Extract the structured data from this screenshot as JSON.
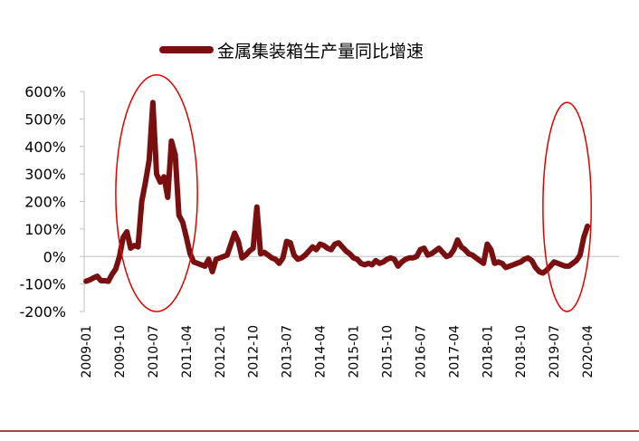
{
  "chart_data": {
    "type": "line",
    "series": [
      {
        "name": "金属集装箱生产量同比增速",
        "color": "#7a0f0f",
        "points": [
          [
            "2009-01",
            -90
          ],
          [
            "2009-02",
            -85
          ],
          [
            "2009-03",
            -78
          ],
          [
            "2009-04",
            -72
          ],
          [
            "2009-05",
            -88
          ],
          [
            "2009-06",
            -88
          ],
          [
            "2009-07",
            -90
          ],
          [
            "2009-08",
            -65
          ],
          [
            "2009-09",
            -45
          ],
          [
            "2009-10",
            0
          ],
          [
            "2009-11",
            70
          ],
          [
            "2009-12",
            90
          ],
          [
            "2010-01",
            30
          ],
          [
            "2010-02",
            40
          ],
          [
            "2010-03",
            35
          ],
          [
            "2010-04",
            200
          ],
          [
            "2010-05",
            270
          ],
          [
            "2010-06",
            350
          ],
          [
            "2010-07",
            560
          ],
          [
            "2010-08",
            300
          ],
          [
            "2010-09",
            270
          ],
          [
            "2010-10",
            290
          ],
          [
            "2010-11",
            215
          ],
          [
            "2010-12",
            420
          ],
          [
            "2011-01",
            370
          ],
          [
            "2011-02",
            150
          ],
          [
            "2011-03",
            125
          ],
          [
            "2011-04",
            70
          ],
          [
            "2011-05",
            10
          ],
          [
            "2011-06",
            -20
          ],
          [
            "2011-07",
            -25
          ],
          [
            "2011-08",
            -30
          ],
          [
            "2011-09",
            -35
          ],
          [
            "2011-10",
            -10
          ],
          [
            "2011-11",
            -55
          ],
          [
            "2011-12",
            -10
          ],
          [
            "2012-01",
            -5
          ],
          [
            "2012-02",
            0
          ],
          [
            "2012-03",
            5
          ],
          [
            "2012-04",
            45
          ],
          [
            "2012-05",
            85
          ],
          [
            "2012-06",
            55
          ],
          [
            "2012-07",
            -5
          ],
          [
            "2012-08",
            5
          ],
          [
            "2012-09",
            20
          ],
          [
            "2012-10",
            30
          ],
          [
            "2012-11",
            180
          ],
          [
            "2012-12",
            10
          ],
          [
            "2013-01",
            15
          ],
          [
            "2013-02",
            5
          ],
          [
            "2013-03",
            -5
          ],
          [
            "2013-04",
            -10
          ],
          [
            "2013-05",
            -25
          ],
          [
            "2013-06",
            -5
          ],
          [
            "2013-07",
            55
          ],
          [
            "2013-08",
            50
          ],
          [
            "2013-09",
            5
          ],
          [
            "2013-10",
            -10
          ],
          [
            "2013-11",
            -5
          ],
          [
            "2013-12",
            5
          ],
          [
            "2014-01",
            20
          ],
          [
            "2014-02",
            35
          ],
          [
            "2014-03",
            25
          ],
          [
            "2014-04",
            45
          ],
          [
            "2014-05",
            40
          ],
          [
            "2014-06",
            30
          ],
          [
            "2014-07",
            25
          ],
          [
            "2014-08",
            45
          ],
          [
            "2014-09",
            50
          ],
          [
            "2014-10",
            35
          ],
          [
            "2014-11",
            20
          ],
          [
            "2014-12",
            10
          ],
          [
            "2015-01",
            -5
          ],
          [
            "2015-02",
            -10
          ],
          [
            "2015-03",
            -25
          ],
          [
            "2015-04",
            -30
          ],
          [
            "2015-05",
            -25
          ],
          [
            "2015-06",
            -30
          ],
          [
            "2015-07",
            -15
          ],
          [
            "2015-08",
            -25
          ],
          [
            "2015-09",
            -20
          ],
          [
            "2015-10",
            -10
          ],
          [
            "2015-11",
            -5
          ],
          [
            "2015-12",
            -10
          ],
          [
            "2016-01",
            -35
          ],
          [
            "2016-02",
            -20
          ],
          [
            "2016-03",
            -10
          ],
          [
            "2016-04",
            -5
          ],
          [
            "2016-05",
            -5
          ],
          [
            "2016-06",
            0
          ],
          [
            "2016-07",
            25
          ],
          [
            "2016-08",
            30
          ],
          [
            "2016-09",
            5
          ],
          [
            "2016-10",
            10
          ],
          [
            "2016-11",
            20
          ],
          [
            "2016-12",
            30
          ],
          [
            "2017-01",
            15
          ],
          [
            "2017-02",
            0
          ],
          [
            "2017-03",
            5
          ],
          [
            "2017-04",
            25
          ],
          [
            "2017-05",
            60
          ],
          [
            "2017-06",
            35
          ],
          [
            "2017-07",
            25
          ],
          [
            "2017-08",
            10
          ],
          [
            "2017-09",
            5
          ],
          [
            "2017-10",
            -5
          ],
          [
            "2017-11",
            -15
          ],
          [
            "2017-12",
            -25
          ],
          [
            "2018-01",
            45
          ],
          [
            "2018-02",
            25
          ],
          [
            "2018-03",
            -25
          ],
          [
            "2018-04",
            -20
          ],
          [
            "2018-05",
            -25
          ],
          [
            "2018-06",
            -40
          ],
          [
            "2018-07",
            -35
          ],
          [
            "2018-08",
            -30
          ],
          [
            "2018-09",
            -25
          ],
          [
            "2018-10",
            -20
          ],
          [
            "2018-11",
            -10
          ],
          [
            "2018-12",
            -5
          ],
          [
            "2019-01",
            -15
          ],
          [
            "2019-02",
            -40
          ],
          [
            "2019-03",
            -55
          ],
          [
            "2019-04",
            -60
          ],
          [
            "2019-05",
            -50
          ],
          [
            "2019-06",
            -35
          ],
          [
            "2019-07",
            -20
          ],
          [
            "2019-08",
            -25
          ],
          [
            "2019-09",
            -30
          ],
          [
            "2019-10",
            -35
          ],
          [
            "2019-11",
            -35
          ],
          [
            "2019-12",
            -25
          ],
          [
            "2020-01",
            -15
          ],
          [
            "2020-02",
            5
          ],
          [
            "2020-03",
            70
          ],
          [
            "2020-04",
            110
          ]
        ]
      }
    ],
    "x_tick_labels": [
      "2009-01",
      "2009-10",
      "2010-07",
      "2011-04",
      "2012-01",
      "2012-10",
      "2013-07",
      "2014-04",
      "2015-01",
      "2015-10",
      "2016-07",
      "2017-04",
      "2018-01",
      "2018-10",
      "2019-07",
      "2020-04"
    ],
    "y_tick_labels": [
      "-200%",
      "-100%",
      "0%",
      "100%",
      "200%",
      "300%",
      "400%",
      "500%",
      "600%"
    ],
    "ylim": [
      -200,
      600
    ],
    "y_unit": "%",
    "grid": false,
    "legend_position": "top-center",
    "annotations": [
      {
        "shape": "ellipse",
        "color": "#e00000",
        "x_range": [
          "2009-09",
          "2011-07"
        ],
        "y_range": [
          -200,
          660
        ]
      },
      {
        "shape": "ellipse",
        "color": "#e00000",
        "x_range": [
          "2019-04",
          "2020-05"
        ],
        "y_range": [
          -200,
          560
        ]
      }
    ]
  }
}
